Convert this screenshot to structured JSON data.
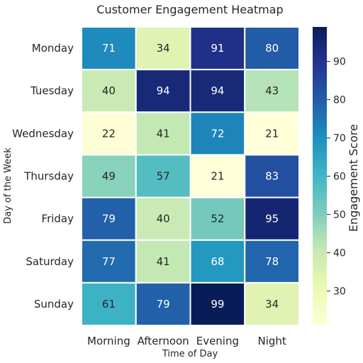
{
  "chart_data": {
    "type": "heatmap",
    "title": "Customer Engagement Heatmap",
    "xlabel": "Time of Day",
    "ylabel": "Day of the Week",
    "x_categories": [
      "Morning",
      "Afternoon",
      "Evening",
      "Night"
    ],
    "y_categories": [
      "Monday",
      "Tuesday",
      "Wednesday",
      "Thursday",
      "Friday",
      "Saturday",
      "Sunday"
    ],
    "values": [
      [
        71,
        34,
        91,
        80
      ],
      [
        40,
        94,
        94,
        43
      ],
      [
        22,
        41,
        72,
        21
      ],
      [
        49,
        57,
        21,
        83
      ],
      [
        79,
        40,
        52,
        95
      ],
      [
        77,
        41,
        68,
        78
      ],
      [
        61,
        79,
        99,
        34
      ]
    ],
    "colorbar": {
      "label": "Engagement Score",
      "range": [
        21,
        99
      ],
      "ticks": [
        30,
        40,
        50,
        60,
        70,
        80,
        90
      ]
    },
    "colormap": "YlGnBu",
    "annotated": true
  }
}
